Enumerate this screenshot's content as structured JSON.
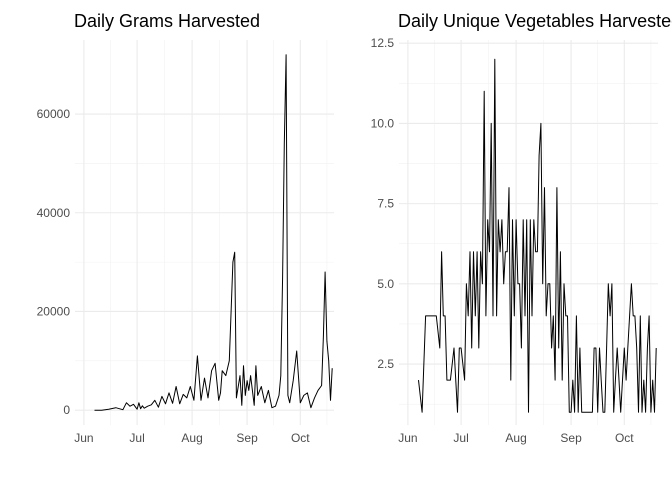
{
  "chart_data": [
    {
      "type": "line",
      "title": "Daily Grams Harvested",
      "xlabel": "",
      "ylabel": "",
      "x_ticks": [
        "Jun",
        "Jul",
        "Aug",
        "Sep",
        "Oct"
      ],
      "y_ticks": [
        "0",
        "20000",
        "40000",
        "60000"
      ],
      "xlim": [
        -5,
        141
      ],
      "ylim": [
        -3000,
        75000
      ],
      "y_tick_values": [
        0,
        20000,
        40000,
        60000
      ],
      "x_tick_values": [
        0,
        30,
        61,
        92,
        122
      ],
      "grid": true,
      "series": [
        {
          "x": [
            6,
            10,
            14,
            18,
            20,
            22,
            24,
            26,
            28,
            30,
            31,
            32,
            33,
            34,
            36,
            38,
            40,
            42,
            44,
            46,
            48,
            50,
            52,
            54,
            56,
            58,
            60,
            62,
            64,
            66,
            68,
            70,
            72,
            74,
            76,
            77,
            78,
            80,
            82,
            84,
            85,
            86,
            88,
            89,
            90,
            91,
            92,
            93,
            94,
            96,
            97,
            98,
            100,
            102,
            104,
            106,
            108,
            110,
            111,
            112,
            113,
            114,
            115,
            116,
            118,
            120,
            122,
            124,
            126,
            128,
            130,
            132,
            134,
            135,
            136,
            137,
            138,
            139,
            140
          ],
          "y": [
            0,
            0,
            200,
            500,
            300,
            100,
            1500,
            800,
            1200,
            200,
            1500,
            300,
            900,
            400,
            800,
            1100,
            2000,
            600,
            2800,
            1300,
            3500,
            1400,
            4800,
            1300,
            3200,
            2500,
            4800,
            2000,
            11000,
            2000,
            6500,
            2500,
            8000,
            9500,
            2000,
            3500,
            8000,
            7000,
            10000,
            30000,
            32000,
            2500,
            7000,
            1000,
            9000,
            3000,
            6000,
            4000,
            7000,
            1000,
            9000,
            3000,
            4800,
            1500,
            4000,
            500,
            800,
            3000,
            7000,
            27000,
            54000,
            72000,
            3000,
            1500,
            6000,
            12000,
            1500,
            3000,
            3500,
            500,
            2500,
            4000,
            5000,
            15000,
            28000,
            14000,
            10000,
            2000,
            8500
          ]
        }
      ]
    },
    {
      "type": "line",
      "title": "Daily Unique Vegetables Harvested",
      "xlabel": "",
      "ylabel": "",
      "x_ticks": [
        "Jun",
        "Jul",
        "Aug",
        "Sep",
        "Oct"
      ],
      "y_ticks": [
        "2.5",
        "5.0",
        "7.5",
        "10.0",
        "12.5"
      ],
      "xlim": [
        -5,
        141
      ],
      "ylim": [
        0.6,
        12.6
      ],
      "y_tick_values": [
        2.5,
        5.0,
        7.5,
        10.0,
        12.5
      ],
      "x_tick_values": [
        0,
        30,
        61,
        92,
        122
      ],
      "grid": true,
      "series": [
        {
          "x": [
            6,
            8,
            10,
            11,
            12,
            14,
            16,
            18,
            19,
            20,
            21,
            22,
            23,
            24,
            26,
            28,
            29,
            30,
            32,
            33,
            34,
            35,
            36,
            37,
            38,
            39,
            40,
            41,
            42,
            43,
            44,
            45,
            46,
            47,
            48,
            49,
            50,
            51,
            52,
            53,
            54,
            55,
            56,
            57,
            58,
            59,
            60,
            61,
            62,
            63,
            64,
            65,
            66,
            67,
            68,
            69,
            70,
            71,
            72,
            73,
            74,
            75,
            76,
            77,
            78,
            79,
            80,
            81,
            82,
            83,
            84,
            85,
            86,
            87,
            88,
            89,
            90,
            91,
            92,
            93,
            94,
            95,
            96,
            97,
            98,
            99,
            100,
            101,
            102,
            103,
            104,
            105,
            106,
            107,
            108,
            109,
            110,
            111,
            112,
            113,
            114,
            115,
            116,
            117,
            118,
            119,
            120,
            121,
            122,
            123,
            124,
            125,
            126,
            127,
            128,
            129,
            130,
            131,
            132,
            133,
            134,
            135,
            136,
            137,
            138,
            139,
            140
          ],
          "y": [
            2,
            1,
            4,
            4,
            4,
            4,
            4,
            3,
            6,
            4,
            4,
            2,
            2,
            2,
            3,
            1,
            3,
            3,
            2,
            5,
            4,
            6,
            3,
            6,
            4,
            6,
            3,
            6,
            5,
            11,
            4,
            7,
            6,
            10,
            4,
            12,
            4,
            7,
            6,
            7,
            5,
            6,
            6,
            8,
            2,
            7,
            4,
            7,
            5,
            5,
            3,
            7,
            4,
            7,
            1,
            7,
            4,
            7,
            6,
            6,
            9,
            10,
            5,
            8,
            4,
            5,
            5,
            3,
            4,
            2,
            8,
            3,
            6,
            2,
            5,
            4,
            4,
            1,
            1,
            2,
            1,
            4,
            1,
            3,
            1,
            1,
            1,
            1,
            1,
            1,
            1,
            3,
            3,
            1,
            3,
            2,
            1,
            1,
            3,
            5,
            4,
            5,
            1,
            2,
            3,
            2,
            1,
            2,
            3,
            2,
            3,
            4,
            5,
            4,
            4,
            3,
            1,
            4,
            1,
            2,
            1,
            3,
            4,
            1,
            2,
            1,
            3
          ]
        }
      ]
    }
  ]
}
